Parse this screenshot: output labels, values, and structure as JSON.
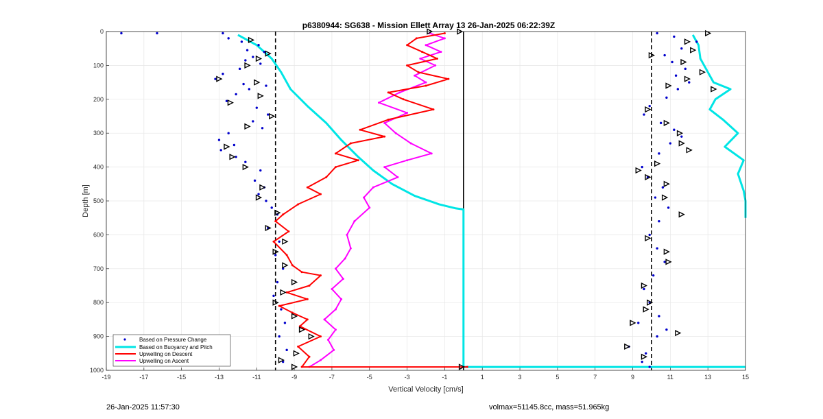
{
  "chart_data": {
    "type": "scatter",
    "title": "p6380944: SG638 - Mission Ellett Array 13 26-Jan-2025 06:22:39Z",
    "xlabel": "Vertical Velocity [cm/s]",
    "ylabel": "Depth [m]",
    "xlim": [
      -19,
      15
    ],
    "ylim": [
      0,
      1000
    ],
    "y_reversed": true,
    "xticks": [
      -19,
      -17,
      -15,
      -13,
      -11,
      -9,
      -7,
      -5,
      -3,
      -1,
      1,
      3,
      5,
      7,
      9,
      11,
      13,
      15
    ],
    "yticks": [
      0,
      100,
      200,
      300,
      400,
      500,
      600,
      700,
      800,
      900,
      1000
    ],
    "grid": true,
    "legend_position": "bottom-left",
    "reference_lines": {
      "dashed_x": [
        -10,
        10
      ],
      "solid_x": [
        0
      ]
    },
    "series": [
      {
        "name": "Based on Pressure Change",
        "style": "dots",
        "color": "#0000cc",
        "descent": [
          [
            -18.2,
            5
          ],
          [
            -16.3,
            5
          ],
          [
            -12.8,
            5
          ],
          [
            -12.5,
            20
          ],
          [
            -11.8,
            30
          ],
          [
            -10.9,
            40
          ],
          [
            -11.5,
            55
          ],
          [
            -10.6,
            60
          ],
          [
            -11.2,
            75
          ],
          [
            -11.6,
            85
          ],
          [
            -10.8,
            95
          ],
          [
            -11.9,
            110
          ],
          [
            -12.8,
            125
          ],
          [
            -13.2,
            140
          ],
          [
            -11.7,
            155
          ],
          [
            -10.5,
            160
          ],
          [
            -11.4,
            170
          ],
          [
            -12.1,
            185
          ],
          [
            -12.6,
            205
          ],
          [
            -11.0,
            225
          ],
          [
            -10.4,
            245
          ],
          [
            -11.2,
            265
          ],
          [
            -10.7,
            285
          ],
          [
            -12.5,
            300
          ],
          [
            -13.0,
            320
          ],
          [
            -12.2,
            335
          ],
          [
            -12.9,
            350
          ],
          [
            -12.1,
            370
          ],
          [
            -11.6,
            385
          ],
          [
            -10.8,
            410
          ],
          [
            -11.1,
            440
          ],
          [
            -10.6,
            460
          ],
          [
            -10.9,
            480
          ],
          [
            -10.5,
            500
          ],
          [
            -10.2,
            520
          ],
          [
            -9.9,
            540
          ],
          [
            -10.4,
            580
          ],
          [
            -9.8,
            620
          ],
          [
            -10.0,
            660
          ],
          [
            -9.6,
            700
          ],
          [
            -9.9,
            740
          ],
          [
            -10.1,
            780
          ],
          [
            -9.7,
            820
          ],
          [
            -9.5,
            860
          ],
          [
            -9.8,
            900
          ],
          [
            -9.4,
            940
          ],
          [
            -9.6,
            975
          ]
        ],
        "ascent": [
          [
            10.3,
            5
          ],
          [
            11.2,
            15
          ],
          [
            12.4,
            30
          ],
          [
            11.6,
            50
          ],
          [
            10.7,
            70
          ],
          [
            11.1,
            90
          ],
          [
            11.8,
            110
          ],
          [
            11.3,
            130
          ],
          [
            12.0,
            150
          ],
          [
            11.4,
            170
          ],
          [
            10.8,
            195
          ],
          [
            9.9,
            220
          ],
          [
            9.6,
            245
          ],
          [
            10.5,
            270
          ],
          [
            11.2,
            290
          ],
          [
            11.6,
            310
          ],
          [
            11.0,
            330
          ],
          [
            10.4,
            360
          ],
          [
            9.5,
            400
          ],
          [
            9.8,
            430
          ],
          [
            10.6,
            460
          ],
          [
            10.2,
            490
          ],
          [
            10.9,
            520
          ],
          [
            10.4,
            560
          ],
          [
            9.9,
            600
          ],
          [
            10.3,
            640
          ],
          [
            10.7,
            680
          ],
          [
            10.1,
            720
          ],
          [
            9.6,
            760
          ],
          [
            9.9,
            800
          ],
          [
            10.4,
            840
          ],
          [
            9.3,
            860
          ],
          [
            10.8,
            880
          ],
          [
            10.3,
            900
          ],
          [
            8.8,
            930
          ],
          [
            9.7,
            950
          ],
          [
            9.5,
            975
          ],
          [
            9.9,
            990
          ]
        ]
      },
      {
        "name": "Based on Buoyancy and Pitch",
        "style": "line",
        "color": "#00e5e5",
        "descent": [
          [
            -12.0,
            10
          ],
          [
            -11.0,
            40
          ],
          [
            -10.2,
            80
          ],
          [
            -9.7,
            120
          ],
          [
            -9.2,
            170
          ],
          [
            -8.3,
            220
          ],
          [
            -7.3,
            270
          ],
          [
            -6.5,
            320
          ],
          [
            -5.6,
            370
          ],
          [
            -4.8,
            410
          ],
          [
            -3.8,
            450
          ],
          [
            -2.6,
            485
          ],
          [
            -1.3,
            510
          ],
          [
            -0.4,
            522
          ],
          [
            0.0,
            525
          ],
          [
            0.0,
            700
          ],
          [
            0.0,
            990
          ],
          [
            15.0,
            990
          ]
        ],
        "ascent": [
          [
            12.2,
            10
          ],
          [
            12.5,
            40
          ],
          [
            12.6,
            80
          ],
          [
            13.0,
            120
          ],
          [
            13.3,
            150
          ],
          [
            14.2,
            170
          ],
          [
            13.4,
            200
          ],
          [
            13.1,
            230
          ],
          [
            13.8,
            260
          ],
          [
            14.6,
            300
          ],
          [
            13.9,
            340
          ],
          [
            14.9,
            380
          ],
          [
            14.6,
            420
          ],
          [
            14.9,
            470
          ],
          [
            15.0,
            500
          ],
          [
            15.0,
            550
          ]
        ]
      },
      {
        "name": "Upwelling on Descent",
        "style": "line",
        "color": "#ff0000",
        "values": [
          [
            -1.0,
            5
          ],
          [
            -2.5,
            20
          ],
          [
            -3.0,
            40
          ],
          [
            -2.2,
            60
          ],
          [
            -1.4,
            80
          ],
          [
            -3.0,
            100
          ],
          [
            -2.4,
            120
          ],
          [
            -0.8,
            140
          ],
          [
            -2.0,
            160
          ],
          [
            -4.0,
            180
          ],
          [
            -3.2,
            200
          ],
          [
            -1.6,
            230
          ],
          [
            -4.0,
            260
          ],
          [
            -5.5,
            290
          ],
          [
            -4.2,
            310
          ],
          [
            -6.0,
            330
          ],
          [
            -6.8,
            360
          ],
          [
            -5.6,
            380
          ],
          [
            -6.8,
            400
          ],
          [
            -7.3,
            430
          ],
          [
            -8.3,
            460
          ],
          [
            -7.6,
            480
          ],
          [
            -8.8,
            510
          ],
          [
            -9.6,
            540
          ],
          [
            -10.0,
            560
          ],
          [
            -9.3,
            590
          ],
          [
            -10.1,
            620
          ],
          [
            -9.4,
            660
          ],
          [
            -9.1,
            690
          ],
          [
            -8.6,
            710
          ],
          [
            -7.6,
            720
          ],
          [
            -8.2,
            750
          ],
          [
            -9.4,
            770
          ],
          [
            -8.3,
            790
          ],
          [
            -9.8,
            810
          ],
          [
            -9.1,
            830
          ],
          [
            -8.3,
            850
          ],
          [
            -8.7,
            870
          ],
          [
            -7.6,
            900
          ],
          [
            -8.8,
            930
          ],
          [
            -8.2,
            960
          ],
          [
            -8.6,
            990
          ],
          [
            0.2,
            990
          ]
        ]
      },
      {
        "name": "Upwelling on Ascent",
        "style": "line",
        "color": "#ff00ff",
        "values": [
          [
            -1.8,
            5
          ],
          [
            -1.0,
            20
          ],
          [
            -2.0,
            40
          ],
          [
            -1.2,
            60
          ],
          [
            -2.3,
            80
          ],
          [
            -1.5,
            100
          ],
          [
            -2.6,
            130
          ],
          [
            -2.0,
            150
          ],
          [
            -3.4,
            180
          ],
          [
            -4.5,
            210
          ],
          [
            -3.0,
            240
          ],
          [
            -4.2,
            270
          ],
          [
            -3.6,
            300
          ],
          [
            -2.8,
            330
          ],
          [
            -1.7,
            360
          ],
          [
            -3.0,
            380
          ],
          [
            -4.2,
            400
          ],
          [
            -3.5,
            430
          ],
          [
            -4.8,
            460
          ],
          [
            -5.3,
            490
          ],
          [
            -5.0,
            520
          ],
          [
            -5.8,
            560
          ],
          [
            -6.2,
            600
          ],
          [
            -6.0,
            640
          ],
          [
            -6.3,
            670
          ],
          [
            -6.8,
            700
          ],
          [
            -6.4,
            730
          ],
          [
            -7.0,
            760
          ],
          [
            -6.5,
            790
          ],
          [
            -6.8,
            820
          ],
          [
            -7.4,
            850
          ],
          [
            -6.8,
            880
          ],
          [
            -7.2,
            910
          ],
          [
            -6.9,
            940
          ],
          [
            -7.6,
            970
          ],
          [
            -8.2,
            990
          ]
        ]
      }
    ],
    "markers": {
      "style": "open-triangle",
      "color": "#000000",
      "points": [
        [
          -11.3,
          25
        ],
        [
          -10.4,
          65
        ],
        [
          -10.9,
          80
        ],
        [
          -11.5,
          100
        ],
        [
          -13.0,
          140
        ],
        [
          -11.0,
          150
        ],
        [
          -12.4,
          210
        ],
        [
          -10.8,
          190
        ],
        [
          -10.2,
          250
        ],
        [
          -11.5,
          280
        ],
        [
          -12.6,
          340
        ],
        [
          -12.3,
          370
        ],
        [
          -11.6,
          400
        ],
        [
          -10.7,
          460
        ],
        [
          -10.9,
          490
        ],
        [
          -9.9,
          535
        ],
        [
          -10.4,
          580
        ],
        [
          -9.5,
          620
        ],
        [
          -10.0,
          650
        ],
        [
          -9.5,
          690
        ],
        [
          -9.0,
          740
        ],
        [
          -9.6,
          770
        ],
        [
          -10.0,
          800
        ],
        [
          -9.0,
          840
        ],
        [
          -8.6,
          880
        ],
        [
          -8.1,
          900
        ],
        [
          -8.9,
          950
        ],
        [
          -9.7,
          970
        ],
        [
          -9.0,
          990
        ],
        [
          -0.1,
          990
        ],
        [
          -1.8,
          0
        ],
        [
          -0.2,
          0
        ],
        [
          13.0,
          5
        ],
        [
          11.9,
          30
        ],
        [
          12.2,
          55
        ],
        [
          10.0,
          70
        ],
        [
          11.7,
          90
        ],
        [
          12.7,
          120
        ],
        [
          11.9,
          140
        ],
        [
          10.9,
          160
        ],
        [
          13.3,
          170
        ],
        [
          9.8,
          230
        ],
        [
          10.8,
          270
        ],
        [
          11.5,
          300
        ],
        [
          11.6,
          330
        ],
        [
          12.0,
          350
        ],
        [
          10.3,
          390
        ],
        [
          9.3,
          410
        ],
        [
          10.8,
          450
        ],
        [
          9.8,
          430
        ],
        [
          10.7,
          490
        ],
        [
          11.6,
          540
        ],
        [
          9.8,
          610
        ],
        [
          10.8,
          650
        ],
        [
          10.9,
          680
        ],
        [
          9.6,
          750
        ],
        [
          9.9,
          800
        ],
        [
          9.7,
          820
        ],
        [
          9.0,
          860
        ],
        [
          11.4,
          890
        ],
        [
          8.7,
          930
        ],
        [
          9.6,
          960
        ]
      ]
    }
  },
  "footer": {
    "left_timestamp": "26-Jan-2025 11:57:30",
    "right_info": "volmax=51145.8cc, mass=51.965kg"
  }
}
